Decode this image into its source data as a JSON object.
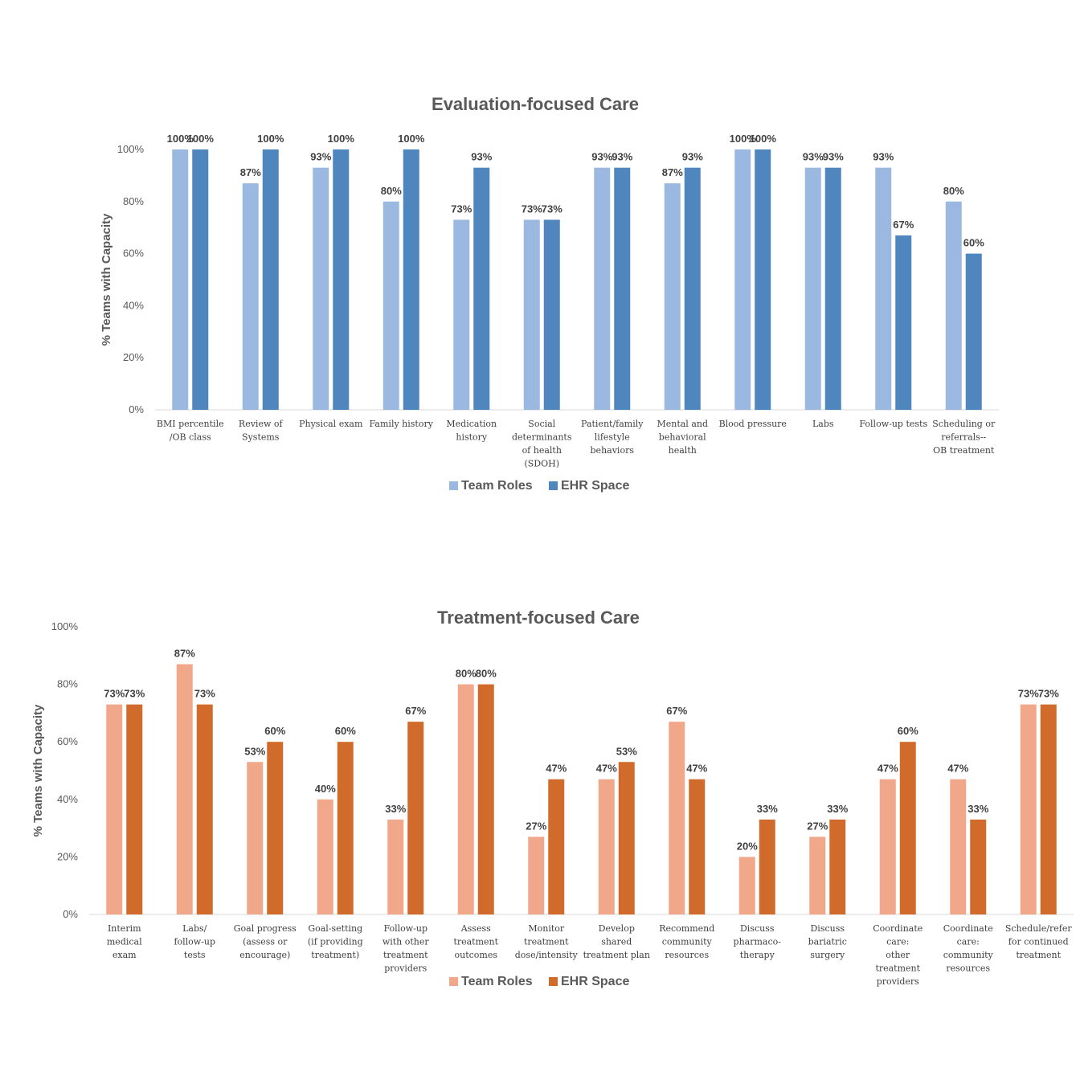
{
  "chart_data": [
    {
      "type": "bar",
      "title": "Evaluation-focused Care",
      "ylabel": "% Teams with Capacity",
      "xlabel": "",
      "ylim": [
        0,
        100
      ],
      "yticks": [
        "0%",
        "20%",
        "40%",
        "60%",
        "80%",
        "100%"
      ],
      "categories": [
        "BMI percentile\n/OB class",
        "Review of\nSystems",
        "Physical exam",
        "Family history",
        "Medication\nhistory",
        "Social\ndeterminants\nof health\n(SDOH)",
        "Patient/family\nlifestyle\nbehaviors",
        "Mental and\nbehavioral\nhealth",
        "Blood pressure",
        "Labs",
        "Follow-up tests",
        "Scheduling or\nreferrals--\nOB treatment"
      ],
      "series": [
        {
          "name": "Team Roles",
          "color": "#9bb9e0",
          "values": [
            100,
            87,
            93,
            80,
            73,
            73,
            93,
            87,
            100,
            93,
            93,
            80
          ],
          "labels": [
            "100%",
            "87%",
            "93%",
            "80%",
            "73%",
            "73%",
            "93%",
            "87%",
            "100%",
            "93%",
            "93%",
            "80%"
          ]
        },
        {
          "name": "EHR Space",
          "color": "#4f86bd",
          "values": [
            100,
            100,
            100,
            100,
            93,
            73,
            93,
            93,
            100,
            93,
            67,
            60
          ],
          "labels": [
            "100%",
            "100%",
            "100%",
            "100%",
            "93%",
            "73%",
            "93%",
            "93%",
            "100%",
            "93%",
            "67%",
            "60%"
          ]
        }
      ],
      "legend": "bottom",
      "grid": false
    },
    {
      "type": "bar",
      "title": "Treatment-focused Care",
      "ylabel": "% Teams with Capacity",
      "xlabel": "",
      "ylim": [
        0,
        100
      ],
      "yticks": [
        "0%",
        "20%",
        "40%",
        "60%",
        "80%",
        "100%"
      ],
      "categories": [
        "Interim\nmedical\nexam",
        "Labs/\nfollow-up\ntests",
        "Goal progress\n(assess or\nencourage)",
        "Goal-setting\n(if providing\ntreatment)",
        "Follow-up\nwith other\ntreatment\nproviders",
        "Assess\ntreatment\noutcomes",
        "Monitor\ntreatment\ndose/intensity",
        "Develop\nshared\ntreatment plan",
        "Recommend\ncommunity\nresources",
        "Discuss\npharmaco-\ntherapy",
        "Discuss\nbariatric\nsurgery",
        "Coordinate\ncare:\nother\ntreatment\nproviders",
        "Coordinate\ncare:\ncommunity\nresources",
        "Schedule/refer\nfor continued\ntreatment"
      ],
      "series": [
        {
          "name": "Team Roles",
          "color": "#f1a88a",
          "values": [
            73,
            87,
            53,
            40,
            33,
            80,
            27,
            47,
            67,
            20,
            27,
            47,
            47,
            73
          ],
          "labels": [
            "73%",
            "87%",
            "53%",
            "40%",
            "33%",
            "80%",
            "27%",
            "47%",
            "67%",
            "20%",
            "27%",
            "47%",
            "47%",
            "73%"
          ]
        },
        {
          "name": "EHR Space",
          "color": "#d06b2c",
          "values": [
            73,
            73,
            60,
            60,
            67,
            80,
            47,
            53,
            47,
            33,
            33,
            60,
            33,
            73
          ],
          "labels": [
            "73%",
            "73%",
            "60%",
            "60%",
            "67%",
            "80%",
            "47%",
            "53%",
            "47%",
            "33%",
            "33%",
            "60%",
            "33%",
            "73%"
          ]
        }
      ],
      "legend": "bottom",
      "grid": false
    }
  ]
}
